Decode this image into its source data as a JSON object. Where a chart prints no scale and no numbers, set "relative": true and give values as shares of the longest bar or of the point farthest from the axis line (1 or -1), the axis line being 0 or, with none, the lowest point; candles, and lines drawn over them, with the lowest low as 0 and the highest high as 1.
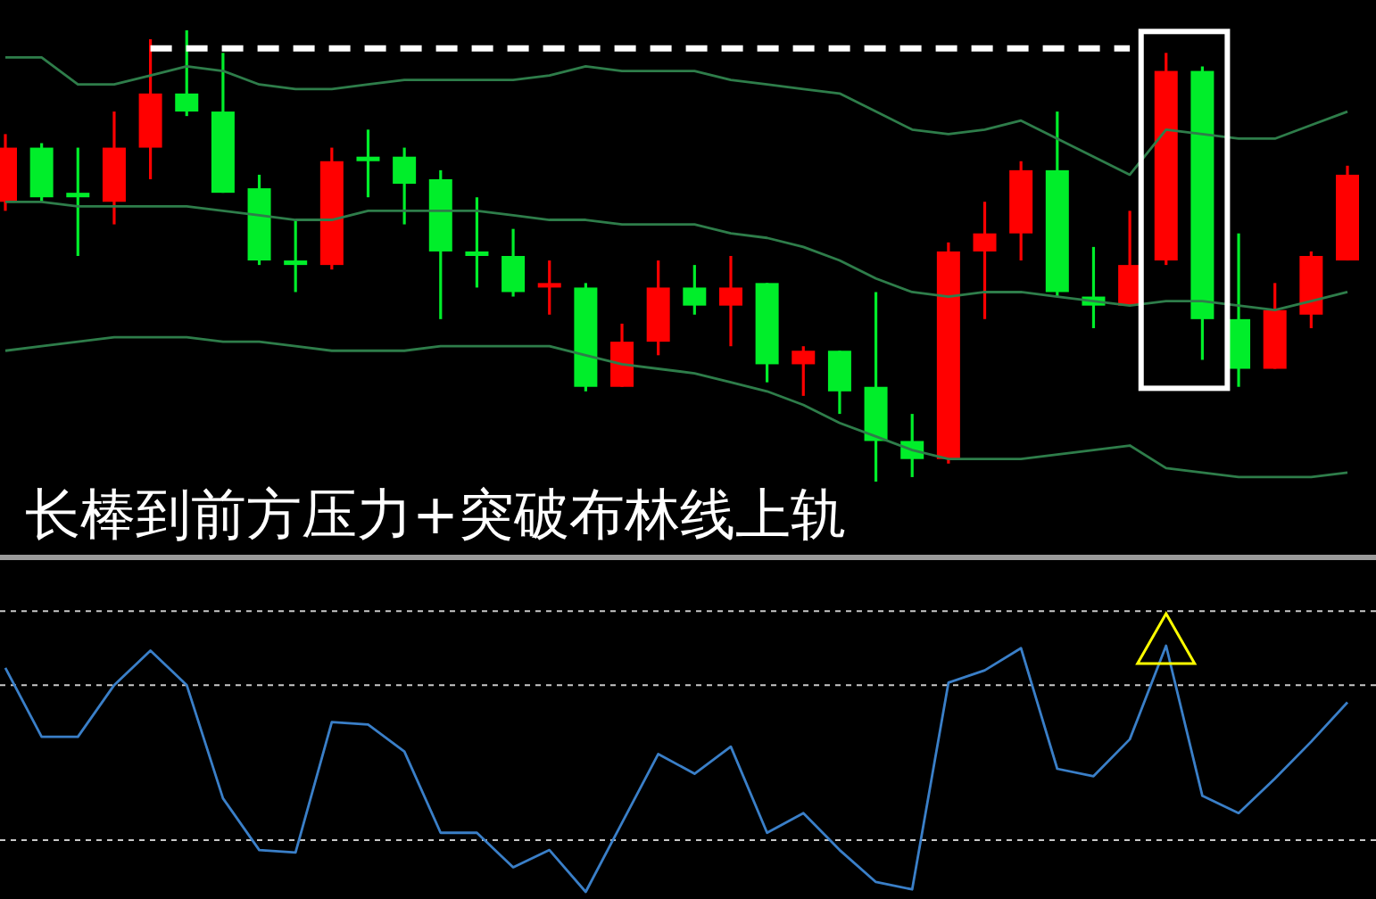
{
  "chart_data": [
    {
      "type": "candlestick",
      "relative": true,
      "marker": "none",
      "categories": [
        null,
        null,
        null,
        null,
        null,
        null,
        null,
        null,
        null,
        null,
        null,
        null,
        null,
        null,
        null,
        null,
        null,
        null,
        null,
        null,
        null,
        null,
        null,
        null,
        null,
        null,
        null,
        null,
        null,
        null,
        null,
        null,
        null,
        null,
        null,
        null,
        null,
        null
      ],
      "ohlc": [
        [
          0.62,
          0.77,
          0.6,
          0.74
        ],
        [
          0.74,
          0.75,
          0.62,
          0.63
        ],
        [
          0.64,
          0.74,
          0.5,
          0.63
        ],
        [
          0.62,
          0.82,
          0.57,
          0.74
        ],
        [
          0.74,
          0.98,
          0.67,
          0.86
        ],
        [
          0.86,
          1,
          0.81,
          0.82
        ],
        [
          0.82,
          0.95,
          0.64,
          0.64
        ],
        [
          0.65,
          0.68,
          0.48,
          0.49
        ],
        [
          0.49,
          0.58,
          0.42,
          0.48
        ],
        [
          0.48,
          0.74,
          0.47,
          0.71
        ],
        [
          0.72,
          0.78,
          0.63,
          0.71
        ],
        [
          0.72,
          0.74,
          0.57,
          0.66
        ],
        [
          0.67,
          0.69,
          0.36,
          0.51
        ],
        [
          0.51,
          0.63,
          0.43,
          0.5
        ],
        [
          0.5,
          0.56,
          0.41,
          0.42
        ],
        [
          0.43,
          0.49,
          0.37,
          0.44
        ],
        [
          0.43,
          0.44,
          0.2,
          0.21
        ],
        [
          0.21,
          0.35,
          0.21,
          0.31
        ],
        [
          0.31,
          0.49,
          0.28,
          0.43
        ],
        [
          0.43,
          0.48,
          0.37,
          0.39
        ],
        [
          0.39,
          0.5,
          0.3,
          0.43
        ],
        [
          0.44,
          0.44,
          0.22,
          0.26
        ],
        [
          0.26,
          0.3,
          0.19,
          0.29
        ],
        [
          0.29,
          0.29,
          0.15,
          0.2
        ],
        [
          0.21,
          0.42,
          0,
          0.09
        ],
        [
          0.09,
          0.15,
          0.01,
          0.05
        ],
        [
          0.05,
          0.53,
          0.04,
          0.51
        ],
        [
          0.51,
          0.62,
          0.36,
          0.55
        ],
        [
          0.55,
          0.71,
          0.49,
          0.69
        ],
        [
          0.69,
          0.82,
          0.41,
          0.42
        ],
        [
          0.41,
          0.52,
          0.34,
          0.39
        ],
        [
          0.39,
          0.6,
          0.39,
          0.48
        ],
        [
          0.49,
          0.95,
          0.48,
          0.91
        ],
        [
          0.91,
          0.92,
          0.27,
          0.36
        ],
        [
          0.36,
          0.55,
          0.21,
          0.25
        ],
        [
          0.25,
          0.44,
          0.25,
          0.38
        ],
        [
          0.37,
          0.51,
          0.34,
          0.5
        ],
        [
          0.49,
          0.7,
          0.49,
          0.68
        ]
      ],
      "series": [
        {
          "type": "line",
          "color": "#2e7d4a",
          "line_style": "solid",
          "values": [
            0.94,
            0.94,
            0.88,
            0.88,
            0.9,
            0.92,
            0.91,
            0.88,
            0.87,
            0.87,
            0.88,
            0.89,
            0.89,
            0.89,
            0.89,
            0.9,
            0.92,
            0.91,
            0.91,
            0.91,
            0.89,
            0.88,
            0.87,
            0.86,
            0.82,
            0.78,
            0.77,
            0.78,
            0.8,
            0.76,
            0.72,
            0.68,
            0.78,
            0.77,
            0.76,
            0.76,
            0.79,
            0.82
          ]
        },
        {
          "type": "line",
          "color": "#2e7d4a",
          "line_style": "solid",
          "values": [
            0.62,
            0.62,
            0.61,
            0.61,
            0.61,
            0.61,
            0.6,
            0.59,
            0.58,
            0.58,
            0.6,
            0.6,
            0.6,
            0.6,
            0.59,
            0.58,
            0.58,
            0.57,
            0.57,
            0.57,
            0.55,
            0.54,
            0.52,
            0.49,
            0.45,
            0.42,
            0.41,
            0.42,
            0.42,
            0.41,
            0.4,
            0.39,
            0.4,
            0.4,
            0.39,
            0.38,
            0.4,
            0.42
          ]
        },
        {
          "type": "line",
          "color": "#2e7d4a",
          "line_style": "solid",
          "values": [
            0.29,
            0.3,
            0.31,
            0.32,
            0.32,
            0.32,
            0.31,
            0.31,
            0.3,
            0.29,
            0.29,
            0.29,
            0.3,
            0.3,
            0.3,
            0.3,
            0.28,
            0.26,
            0.25,
            0.24,
            0.22,
            0.2,
            0.17,
            0.13,
            0.1,
            0.07,
            0.05,
            0.05,
            0.05,
            0.06,
            0.07,
            0.08,
            0.03,
            0.02,
            0.01,
            0.01,
            0.01,
            0.02
          ]
        },
        {
          "type": "line",
          "color": "#ffffff",
          "line_style": "dashed",
          "values": [
            null,
            null,
            null,
            null,
            0.96,
            0.96,
            0.96,
            0.96,
            0.96,
            0.96,
            0.96,
            0.96,
            0.96,
            0.96,
            0.96,
            0.96,
            0.96,
            0.96,
            0.96,
            0.96,
            0.96,
            0.96,
            0.96,
            0.96,
            0.96,
            0.96,
            0.96,
            0.96,
            0.96,
            0.96,
            0.96,
            0.96,
            null,
            null,
            null,
            null,
            null,
            null
          ]
        }
      ],
      "annotations": [
        "长棒到前方压力+突破布林线上轨"
      ]
    },
    {
      "type": "line",
      "relative": true,
      "marker": "none",
      "categories": [
        null,
        null,
        null,
        null,
        null,
        null,
        null,
        null,
        null,
        null,
        null,
        null,
        null,
        null,
        null,
        null,
        null,
        null,
        null,
        null,
        null,
        null,
        null,
        null,
        null,
        null,
        null,
        null,
        null,
        null,
        null,
        null,
        null,
        null,
        null,
        null,
        null,
        null
      ],
      "series": [
        {
          "color": "#3a7fc8",
          "values": [
            0.91,
            0.63,
            0.63,
            0.84,
            0.98,
            0.84,
            0.38,
            0.17,
            0.16,
            0.69,
            0.68,
            0.57,
            0.24,
            0.24,
            0.1,
            0.17,
            0,
            0.28,
            0.56,
            0.48,
            0.59,
            0.24,
            0.32,
            0.17,
            0.04,
            0.01,
            0.85,
            0.9,
            0.99,
            0.5,
            0.47,
            0.62,
            1,
            0.39,
            0.32,
            0.46,
            0.61,
            0.77
          ]
        }
      ],
      "ref_lines": [
        {
          "axis": "y",
          "value": 1.14,
          "color": "#c8c8c8",
          "line_style": "dashed"
        },
        {
          "axis": "y",
          "value": 0.84,
          "color": "#c8c8c8",
          "line_style": "dashed"
        },
        {
          "axis": "y",
          "value": 0.21,
          "color": "#c8c8c8",
          "line_style": "dashed"
        }
      ]
    }
  ]
}
